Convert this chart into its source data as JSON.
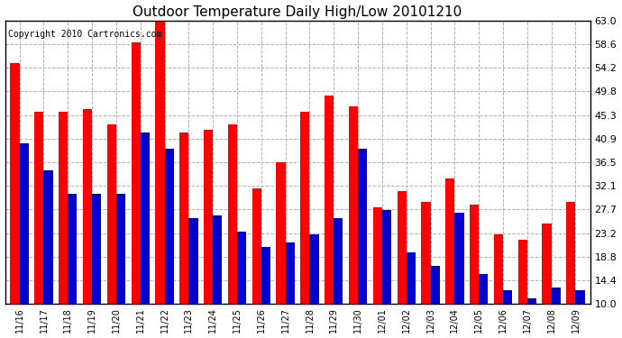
{
  "title": "Outdoor Temperature Daily High/Low 20101210",
  "copyright": "Copyright 2010 Cartronics.com",
  "dates": [
    "11/16",
    "11/17",
    "11/18",
    "11/19",
    "11/20",
    "11/21",
    "11/22",
    "11/23",
    "11/24",
    "11/25",
    "11/26",
    "11/27",
    "11/28",
    "11/29",
    "11/30",
    "12/01",
    "12/02",
    "12/03",
    "12/04",
    "12/05",
    "12/06",
    "12/07",
    "12/08",
    "12/09"
  ],
  "highs": [
    55.0,
    46.0,
    46.0,
    46.5,
    43.5,
    59.0,
    63.5,
    42.0,
    42.5,
    43.5,
    31.5,
    36.5,
    46.0,
    49.0,
    47.0,
    28.0,
    31.0,
    29.0,
    33.5,
    28.5,
    23.0,
    22.0,
    25.0,
    29.0
  ],
  "lows": [
    40.0,
    35.0,
    30.5,
    30.5,
    30.5,
    42.0,
    39.0,
    26.0,
    26.5,
    23.5,
    20.5,
    21.5,
    23.0,
    26.0,
    39.0,
    27.5,
    19.5,
    17.0,
    27.0,
    15.5,
    12.5,
    11.0,
    13.0,
    12.5
  ],
  "high_color": "#ff0000",
  "low_color": "#0000cc",
  "bg_color": "#ffffff",
  "grid_color": "#b0b0b0",
  "yticks": [
    10.0,
    14.4,
    18.8,
    23.2,
    27.7,
    32.1,
    36.5,
    40.9,
    45.3,
    49.8,
    54.2,
    58.6,
    63.0
  ],
  "ymin": 10.0,
  "ymax": 63.0,
  "title_fontsize": 11,
  "copyright_fontsize": 7,
  "xtick_fontsize": 7,
  "ytick_fontsize": 8,
  "bar_width": 0.38
}
